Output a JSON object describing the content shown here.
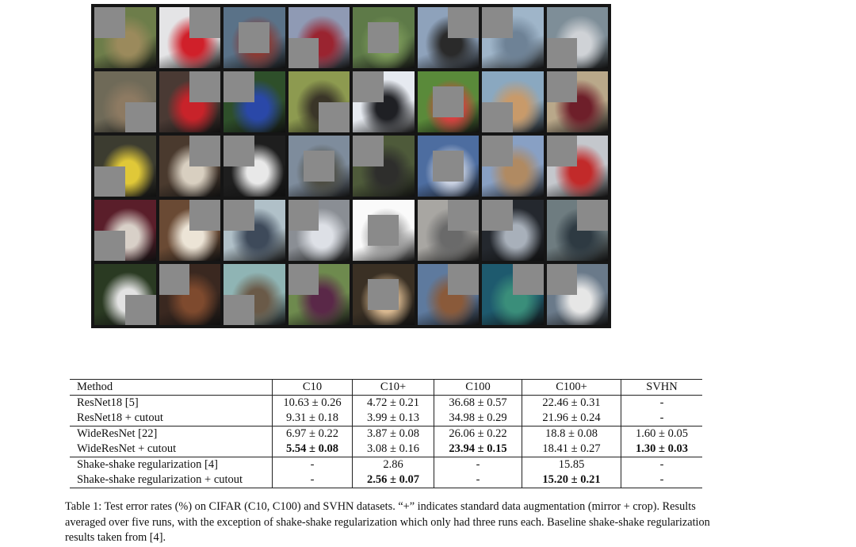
{
  "image_grid": {
    "rows": 5,
    "cols": 8,
    "tiles": [
      {
        "bg": "#6d7d4a",
        "accent": "#9b8a5c",
        "patch": "tl"
      },
      {
        "bg": "#e4e4e6",
        "accent": "#d0202a",
        "patch": "tr"
      },
      {
        "bg": "#5a7288",
        "accent": "#8a3a34",
        "patch": "c"
      },
      {
        "bg": "#8f9ab4",
        "accent": "#9a2430",
        "patch": "bl"
      },
      {
        "bg": "#5e7a48",
        "accent": "#7c9a5a",
        "patch": "c"
      },
      {
        "bg": "#8ea2bb",
        "accent": "#2a2a2a",
        "patch": "tr"
      },
      {
        "bg": "#9fb5c9",
        "accent": "#6e8296",
        "patch": "tl"
      },
      {
        "bg": "#7e8e98",
        "accent": "#cfd2d6",
        "patch": "bl"
      },
      {
        "bg": "#6f6a58",
        "accent": "#8d7a62",
        "patch": "br"
      },
      {
        "bg": "#4a3a34",
        "accent": "#c8232a",
        "patch": "tr"
      },
      {
        "bg": "#2e4f2a",
        "accent": "#2a48a8",
        "patch": "tl"
      },
      {
        "bg": "#8d9a50",
        "accent": "#3a3528",
        "patch": "br"
      },
      {
        "bg": "#e6eaf0",
        "accent": "#1f2024",
        "patch": "tl"
      },
      {
        "bg": "#5a8a3a",
        "accent": "#d64040",
        "patch": "c"
      },
      {
        "bg": "#8aa8c0",
        "accent": "#c89a6a",
        "patch": "bl"
      },
      {
        "bg": "#b9a88a",
        "accent": "#6e1f2a",
        "patch": "tl"
      },
      {
        "bg": "#3c3c30",
        "accent": "#e0c838",
        "patch": "bl"
      },
      {
        "bg": "#4a3a2e",
        "accent": "#d8cfc0",
        "patch": "tr"
      },
      {
        "bg": "#1e1e1e",
        "accent": "#e8e8e8",
        "patch": "tl"
      },
      {
        "bg": "#7e8c9c",
        "accent": "#4e4e44",
        "patch": "c"
      },
      {
        "bg": "#4e5a3a",
        "accent": "#2e2e2c",
        "patch": "tl"
      },
      {
        "bg": "#4d6da0",
        "accent": "#c8d0e0",
        "patch": "c"
      },
      {
        "bg": "#88a0c4",
        "accent": "#b08a62",
        "patch": "tl"
      },
      {
        "bg": "#c4c7cc",
        "accent": "#c22a2a",
        "patch": "tl"
      },
      {
        "bg": "#5a1e2a",
        "accent": "#d8d0c8",
        "patch": "bl"
      },
      {
        "bg": "#6a4a34",
        "accent": "#ece4d6",
        "patch": "tr"
      },
      {
        "bg": "#b0c0c8",
        "accent": "#3e4a5a",
        "patch": "tl"
      },
      {
        "bg": "#8a8e94",
        "accent": "#dde0e6",
        "patch": "tl"
      },
      {
        "bg": "#fafafa",
        "accent": "#9a9a9a",
        "patch": "c"
      },
      {
        "bg": "#a8a6a2",
        "accent": "#6a6a6a",
        "patch": "tr"
      },
      {
        "bg": "#24282e",
        "accent": "#a8b0ba",
        "patch": "tl"
      },
      {
        "bg": "#6e7c80",
        "accent": "#2e3a42",
        "patch": "tr"
      },
      {
        "bg": "#2a3a22",
        "accent": "#e2e2e2",
        "patch": "br"
      },
      {
        "bg": "#3a2820",
        "accent": "#7e4a2e",
        "patch": "tl"
      },
      {
        "bg": "#8fb4b4",
        "accent": "#6a5a48",
        "patch": "bl"
      },
      {
        "bg": "#6e8a4e",
        "accent": "#5a2848",
        "patch": "tl"
      },
      {
        "bg": "#3a3024",
        "accent": "#d8b890",
        "patch": "c"
      },
      {
        "bg": "#5e7a9e",
        "accent": "#8a5a3a",
        "patch": "tr"
      },
      {
        "bg": "#1e5a6e",
        "accent": "#3a8e7a",
        "patch": "tr"
      },
      {
        "bg": "#6a7a8a",
        "accent": "#e6e6e6",
        "patch": "tl"
      }
    ]
  },
  "table": {
    "headers": [
      "Method",
      "C10",
      "C10+",
      "C100",
      "C100+",
      "SVHN"
    ],
    "rows": [
      {
        "method": "ResNet18 [5]",
        "c10": "10.63 ± 0.26",
        "c10p": "4.72 ± 0.21",
        "c100": "36.68 ± 0.57",
        "c100p": "22.46 ± 0.31",
        "svhn": "-"
      },
      {
        "method": "ResNet18 + cutout",
        "c10": "9.31 ± 0.18",
        "c10p": "3.99 ± 0.13",
        "c100": "34.98 ± 0.29",
        "c100p": "21.96 ± 0.24",
        "svhn": "-"
      },
      {
        "method": "WideResNet [22]",
        "c10": "6.97 ± 0.22",
        "c10p": "3.87 ± 0.08",
        "c100": "26.06 ± 0.22",
        "c100p": "18.8 ± 0.08",
        "svhn": "1.60 ± 0.05"
      },
      {
        "method": "WideResNet + cutout",
        "c10": "5.54 ± 0.08",
        "c10p": "3.08 ± 0.16",
        "c100": "23.94 ± 0.15",
        "c100p": "18.41 ± 0.27",
        "svhn": "1.30 ± 0.03"
      },
      {
        "method": "Shake-shake regularization [4]",
        "c10": "-",
        "c10p": "2.86",
        "c100": "-",
        "c100p": "15.85",
        "svhn": "-"
      },
      {
        "method": "Shake-shake regularization + cutout",
        "c10": "-",
        "c10p": "2.56 ± 0.07",
        "c100": "-",
        "c100p": "15.20 ± 0.21",
        "svhn": "-"
      }
    ]
  },
  "caption": "Table 1: Test error rates (%) on CIFAR (C10, C100) and SVHN datasets. “+” indicates standard data augmentation (mirror + crop). Results averaged over five runs, with the exception of shake-shake regularization which only had three runs each. Baseline shake-shake regularization results taken from [4]."
}
